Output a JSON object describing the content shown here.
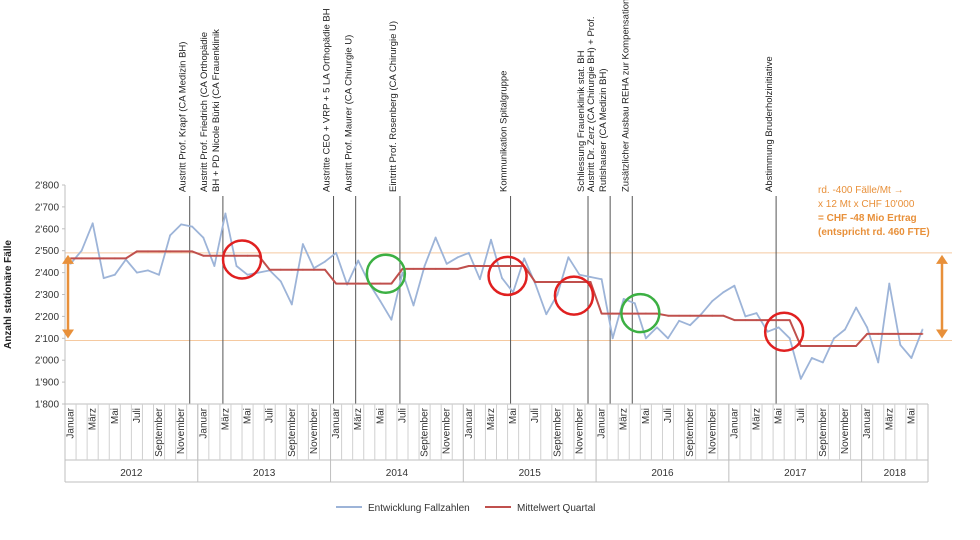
{
  "chart_data": {
    "type": "line",
    "ylabel": "Anzahl stationäre Fälle",
    "ylim": [
      1800,
      2800
    ],
    "yticks": [
      "1'800",
      "1'900",
      "2'000",
      "2'100",
      "2'200",
      "2'300",
      "2'400",
      "2'500",
      "2'600",
      "2'700",
      "2'800"
    ],
    "grid": false,
    "legend_position": "bottom",
    "x_month_labels": [
      "Januar",
      "März",
      "Mai",
      "Juli",
      "September",
      "November"
    ],
    "years": [
      {
        "label": "2012",
        "months": 12
      },
      {
        "label": "2013",
        "months": 12
      },
      {
        "label": "2014",
        "months": 12
      },
      {
        "label": "2015",
        "months": 12
      },
      {
        "label": "2016",
        "months": 12
      },
      {
        "label": "2017",
        "months": 12
      },
      {
        "label": "2018",
        "months": 6
      }
    ],
    "series": [
      {
        "name": "Entwicklung Fallzahlen",
        "color": "#9db4d8",
        "values": [
          2440,
          2500,
          2625,
          2375,
          2390,
          2460,
          2400,
          2410,
          2390,
          2570,
          2620,
          2610,
          2560,
          2430,
          2670,
          2430,
          2390,
          2400,
          2410,
          2360,
          2255,
          2530,
          2420,
          2450,
          2490,
          2345,
          2455,
          2350,
          2270,
          2185,
          2400,
          2250,
          2430,
          2560,
          2440,
          2470,
          2490,
          2370,
          2550,
          2375,
          2310,
          2465,
          2350,
          2210,
          2300,
          2470,
          2390,
          2380,
          2370,
          2100,
          2280,
          2260,
          2100,
          2150,
          2100,
          2180,
          2160,
          2210,
          2270,
          2310,
          2340,
          2200,
          2215,
          2130,
          2150,
          2100,
          1915,
          2010,
          1990,
          2100,
          2140,
          2240,
          2150,
          1990,
          2350,
          2070,
          2010,
          2140
        ]
      },
      {
        "name": "Mittelwert Quartal",
        "color": "#c0504d",
        "values": [
          2465,
          2465,
          2465,
          2465,
          2465,
          2465,
          2497,
          2497,
          2497,
          2497,
          2497,
          2497,
          2477,
          2477,
          2477,
          2477,
          2477,
          2477,
          2413,
          2413,
          2413,
          2413,
          2413,
          2413,
          2350,
          2350,
          2350,
          2350,
          2350,
          2350,
          2417,
          2417,
          2417,
          2417,
          2417,
          2417,
          2430,
          2430,
          2430,
          2430,
          2430,
          2430,
          2357,
          2357,
          2357,
          2357,
          2357,
          2357,
          2213,
          2213,
          2213,
          2213,
          2213,
          2213,
          2203,
          2203,
          2203,
          2203,
          2203,
          2203,
          2183,
          2183,
          2183,
          2183,
          2183,
          2183,
          2065,
          2065,
          2065,
          2065,
          2065,
          2065,
          2120,
          2120,
          2120,
          2120,
          2120,
          2120
        ]
      }
    ],
    "reference_lines": [
      2490,
      2090
    ],
    "events": [
      {
        "index": 11,
        "lines": [
          "Austritt Prof. Krapf (CA Medizin BH)"
        ]
      },
      {
        "index": 14,
        "lines": [
          "Austritt Prof. Friedrich (CA Orthopädie",
          "BH + PD Nicole Bürki (CA Frauenklinik"
        ]
      },
      {
        "index": 24,
        "lines": [
          "Austritte CEO + VRP +  5 LA Orthopädie BH"
        ]
      },
      {
        "index": 26,
        "lines": [
          "Austritt Prof. Maurer (CA Chirurgie U)"
        ]
      },
      {
        "index": 30,
        "lines": [
          "Eintritt Prof. Rosenberg (CA Chirurgie U)"
        ]
      },
      {
        "index": 40,
        "lines": [
          "Kommunikation Spitalgruppe"
        ]
      },
      {
        "index": 47,
        "lines": [
          "Schliessung Frauenklinik stat. BH"
        ]
      },
      {
        "index": 49,
        "lines": [
          "Austritt Dr. Zerz (CA Chirurgie BH) + Prof.",
          "Rutishauser (CA Medizin BH)"
        ]
      },
      {
        "index": 51,
        "lines": [
          "Zusätzlicher Ausbau REHA zur Kompensation"
        ]
      },
      {
        "index": 64,
        "lines": [
          "Abstimmung Bruderholzinitiative"
        ]
      }
    ],
    "circles": [
      {
        "index": 15.5,
        "value": 2460,
        "color": "#e02020"
      },
      {
        "index": 28.5,
        "value": 2395,
        "color": "#3cb043"
      },
      {
        "index": 39.5,
        "value": 2385,
        "color": "#e02020"
      },
      {
        "index": 45.5,
        "value": 2295,
        "color": "#e02020"
      },
      {
        "index": 51.5,
        "value": 2215,
        "color": "#3cb043"
      },
      {
        "index": 64.5,
        "value": 2130,
        "color": "#e02020"
      }
    ],
    "annotation": {
      "lines": [
        "rd. -400 Fälle/Mt →",
        "x 12 Mt x CHF 10'000",
        "= CHF -48 Mio Ertrag",
        "(entspricht rd. 460 FTE)"
      ],
      "color": "#e8903a"
    }
  }
}
